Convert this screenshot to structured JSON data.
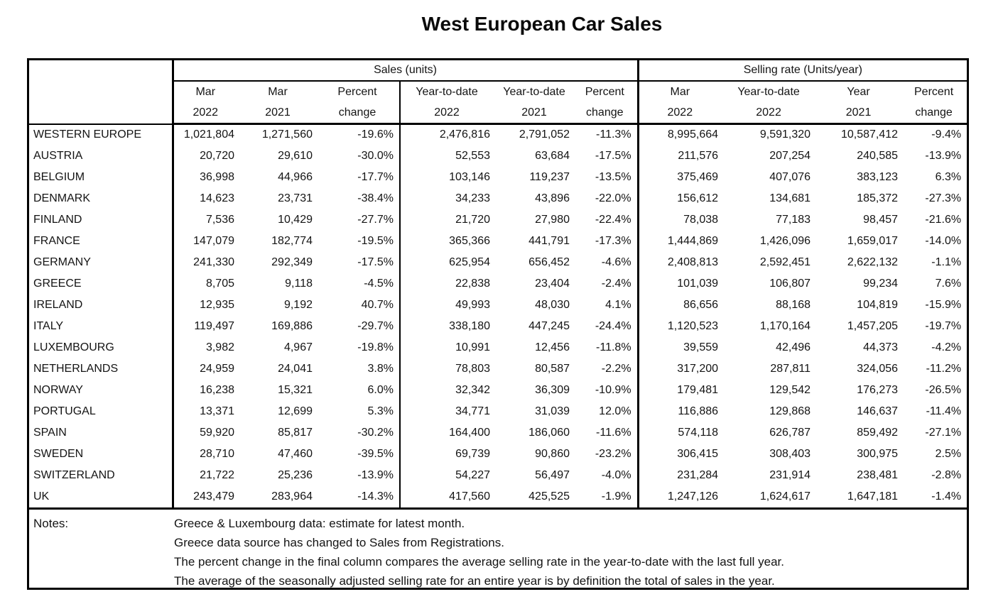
{
  "title": "West European Car Sales",
  "table": {
    "groups": [
      {
        "label": "Sales (units)"
      },
      {
        "label": "Selling rate (Units/year)"
      }
    ],
    "columns": [
      {
        "line1": "Mar",
        "line2": "2022"
      },
      {
        "line1": "Mar",
        "line2": "2021"
      },
      {
        "line1": "Percent",
        "line2": "change"
      },
      {
        "line1": "Year-to-date",
        "line2": "2022"
      },
      {
        "line1": "Year-to-date",
        "line2": "2021"
      },
      {
        "line1": "Percent",
        "line2": "change"
      },
      {
        "line1": "Mar",
        "line2": "2022"
      },
      {
        "line1": "Year-to-date",
        "line2": "2022"
      },
      {
        "line1": "Year",
        "line2": "2021"
      },
      {
        "line1": "Percent",
        "line2": "change"
      }
    ],
    "rows": [
      {
        "country": "WESTERN EUROPE",
        "values": [
          "1,021,804",
          "1,271,560",
          "-19.6%",
          "2,476,816",
          "2,791,052",
          "-11.3%",
          "8,995,664",
          "9,591,320",
          "10,587,412",
          "-9.4%"
        ]
      },
      {
        "country": "AUSTRIA",
        "values": [
          "20,720",
          "29,610",
          "-30.0%",
          "52,553",
          "63,684",
          "-17.5%",
          "211,576",
          "207,254",
          "240,585",
          "-13.9%"
        ]
      },
      {
        "country": "BELGIUM",
        "values": [
          "36,998",
          "44,966",
          "-17.7%",
          "103,146",
          "119,237",
          "-13.5%",
          "375,469",
          "407,076",
          "383,123",
          "6.3%"
        ]
      },
      {
        "country": "DENMARK",
        "values": [
          "14,623",
          "23,731",
          "-38.4%",
          "34,233",
          "43,896",
          "-22.0%",
          "156,612",
          "134,681",
          "185,372",
          "-27.3%"
        ]
      },
      {
        "country": "FINLAND",
        "values": [
          "7,536",
          "10,429",
          "-27.7%",
          "21,720",
          "27,980",
          "-22.4%",
          "78,038",
          "77,183",
          "98,457",
          "-21.6%"
        ]
      },
      {
        "country": "FRANCE",
        "values": [
          "147,079",
          "182,774",
          "-19.5%",
          "365,366",
          "441,791",
          "-17.3%",
          "1,444,869",
          "1,426,096",
          "1,659,017",
          "-14.0%"
        ]
      },
      {
        "country": "GERMANY",
        "values": [
          "241,330",
          "292,349",
          "-17.5%",
          "625,954",
          "656,452",
          "-4.6%",
          "2,408,813",
          "2,592,451",
          "2,622,132",
          "-1.1%"
        ]
      },
      {
        "country": "GREECE",
        "values": [
          "8,705",
          "9,118",
          "-4.5%",
          "22,838",
          "23,404",
          "-2.4%",
          "101,039",
          "106,807",
          "99,234",
          "7.6%"
        ]
      },
      {
        "country": "IRELAND",
        "values": [
          "12,935",
          "9,192",
          "40.7%",
          "49,993",
          "48,030",
          "4.1%",
          "86,656",
          "88,168",
          "104,819",
          "-15.9%"
        ]
      },
      {
        "country": "ITALY",
        "values": [
          "119,497",
          "169,886",
          "-29.7%",
          "338,180",
          "447,245",
          "-24.4%",
          "1,120,523",
          "1,170,164",
          "1,457,205",
          "-19.7%"
        ]
      },
      {
        "country": "LUXEMBOURG",
        "values": [
          "3,982",
          "4,967",
          "-19.8%",
          "10,991",
          "12,456",
          "-11.8%",
          "39,559",
          "42,496",
          "44,373",
          "-4.2%"
        ]
      },
      {
        "country": "NETHERLANDS",
        "values": [
          "24,959",
          "24,041",
          "3.8%",
          "78,803",
          "80,587",
          "-2.2%",
          "317,200",
          "287,811",
          "324,056",
          "-11.2%"
        ]
      },
      {
        "country": "NORWAY",
        "values": [
          "16,238",
          "15,321",
          "6.0%",
          "32,342",
          "36,309",
          "-10.9%",
          "179,481",
          "129,542",
          "176,273",
          "-26.5%"
        ]
      },
      {
        "country": "PORTUGAL",
        "values": [
          "13,371",
          "12,699",
          "5.3%",
          "34,771",
          "31,039",
          "12.0%",
          "116,886",
          "129,868",
          "146,637",
          "-11.4%"
        ]
      },
      {
        "country": "SPAIN",
        "values": [
          "59,920",
          "85,817",
          "-30.2%",
          "164,400",
          "186,060",
          "-11.6%",
          "574,118",
          "626,787",
          "859,492",
          "-27.1%"
        ]
      },
      {
        "country": "SWEDEN",
        "values": [
          "28,710",
          "47,460",
          "-39.5%",
          "69,739",
          "90,860",
          "-23.2%",
          "306,415",
          "308,403",
          "300,975",
          "2.5%"
        ]
      },
      {
        "country": "SWITZERLAND",
        "values": [
          "21,722",
          "25,236",
          "-13.9%",
          "54,227",
          "56,497",
          "-4.0%",
          "231,284",
          "231,914",
          "238,481",
          "-2.8%"
        ]
      },
      {
        "country": "UK",
        "values": [
          "243,479",
          "283,964",
          "-14.3%",
          "417,560",
          "425,525",
          "-1.9%",
          "1,247,126",
          "1,624,617",
          "1,647,181",
          "-1.4%"
        ]
      }
    ]
  },
  "notes": {
    "label": "Notes:",
    "lines": [
      "Greece & Luxembourg data: estimate for latest month.",
      "Greece data source has changed to Sales from Registrations.",
      "The percent change in the final column compares the average selling rate in the year-to-date with the last full year.",
      "The average of the seasonally adjusted selling rate for an entire year is by definition the total of sales in the year."
    ]
  }
}
